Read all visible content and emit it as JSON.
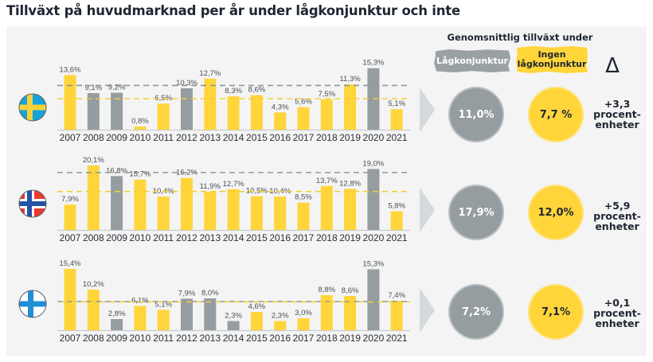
{
  "title": "Tillväxt på huvudmarknad per år under lågkonjunktur och inte",
  "summary": {
    "heading": "Genomsnittlig tillväxt under",
    "tag_recession": "Lågkonjunktur",
    "tag_no_recession_line1": "Ingen",
    "tag_no_recession_line2": "lågkonjunktur",
    "delta_symbol": "Δ",
    "delta_unit_line1": "procent-",
    "delta_unit_line2": "enheter"
  },
  "colors": {
    "recession": "#959da1",
    "no_recession": "#ffd53a",
    "panel": "#f4f4f4",
    "text": "#1e2632"
  },
  "countries": [
    {
      "name": "Sverige",
      "flag_icon": "sweden-flag-icon",
      "avg_recession": "11,0%",
      "avg_no_recession": "7,7 %",
      "delta": "+3,3"
    },
    {
      "name": "Norge",
      "flag_icon": "norway-flag-icon",
      "avg_recession": "17,9%",
      "avg_no_recession": "12,0%",
      "delta": "+5,9"
    },
    {
      "name": "Finland",
      "flag_icon": "finland-flag-icon",
      "avg_recession": "7,2%",
      "avg_no_recession": "7,1%",
      "delta": "+0,1"
    }
  ],
  "chart_data": [
    {
      "type": "bar",
      "title": "Sverige",
      "categories": [
        "2007",
        "2008",
        "2009",
        "2010",
        "2011",
        "2012",
        "2013",
        "2014",
        "2015",
        "2016",
        "2017",
        "2018",
        "2019",
        "2020",
        "2021"
      ],
      "values": [
        13.6,
        9.1,
        9.2,
        0.8,
        6.5,
        10.3,
        12.7,
        8.3,
        8.6,
        4.3,
        5.6,
        7.5,
        11.3,
        15.3,
        5.1
      ],
      "labels": [
        "13,6%",
        "9,1%",
        "9,2%",
        "0,8%",
        "6,5%",
        "10,3%",
        "12,7%",
        "8,3%",
        "8,6%",
        "4,3%",
        "5,6%",
        "7,5%",
        "11,3%",
        "15,3%",
        "5,1%"
      ],
      "recession": [
        false,
        true,
        true,
        false,
        false,
        true,
        false,
        false,
        false,
        false,
        false,
        false,
        false,
        true,
        false
      ],
      "avg_recession": 11.0,
      "avg_no_recession": 7.7,
      "ylim": [
        0,
        16
      ],
      "xlabel": "",
      "ylabel": "",
      "grid": false
    },
    {
      "type": "bar",
      "title": "Norge",
      "categories": [
        "2007",
        "2008",
        "2009",
        "2010",
        "2011",
        "2012",
        "2013",
        "2014",
        "2015",
        "2016",
        "2017",
        "2018",
        "2019",
        "2020",
        "2021"
      ],
      "values": [
        7.9,
        20.1,
        16.8,
        15.7,
        10.4,
        16.2,
        11.9,
        12.7,
        10.5,
        10.4,
        8.5,
        13.7,
        12.8,
        19.0,
        5.8
      ],
      "labels": [
        "7,9%",
        "20,1%",
        "16,8%",
        "15,7%",
        "10,4%",
        "16,2%",
        "11,9%",
        "12,7%",
        "10,5%",
        "10,4%",
        "8,5%",
        "13,7%",
        "12,8%",
        "19,0%",
        "5,8%"
      ],
      "recession": [
        false,
        false,
        true,
        false,
        false,
        false,
        false,
        false,
        false,
        false,
        false,
        false,
        false,
        true,
        false
      ],
      "avg_recession": 17.9,
      "avg_no_recession": 12.0,
      "ylim": [
        0,
        21
      ],
      "xlabel": "",
      "ylabel": "",
      "grid": false
    },
    {
      "type": "bar",
      "title": "Finland",
      "categories": [
        "2007",
        "2008",
        "2009",
        "2010",
        "2011",
        "2012",
        "2013",
        "2014",
        "2015",
        "2016",
        "2017",
        "2018",
        "2019",
        "2020",
        "2021"
      ],
      "values": [
        15.4,
        10.2,
        2.8,
        6.1,
        5.1,
        7.9,
        8.0,
        2.3,
        4.6,
        2.3,
        3.0,
        8.8,
        8.6,
        15.3,
        7.4
      ],
      "labels": [
        "15,4%",
        "10,2%",
        "2,8%",
        "6,1%",
        "5,1%",
        "7,9%",
        "8,0%",
        "2,3%",
        "4,6%",
        "2,3%",
        "3,0%",
        "8,8%",
        "8,6%",
        "15,3%",
        "7,4%"
      ],
      "recession": [
        false,
        false,
        true,
        false,
        false,
        true,
        true,
        true,
        false,
        false,
        false,
        false,
        false,
        true,
        false
      ],
      "avg_recession": 7.2,
      "avg_no_recession": 7.1,
      "ylim": [
        0,
        16
      ],
      "xlabel": "",
      "ylabel": "",
      "grid": false
    }
  ]
}
